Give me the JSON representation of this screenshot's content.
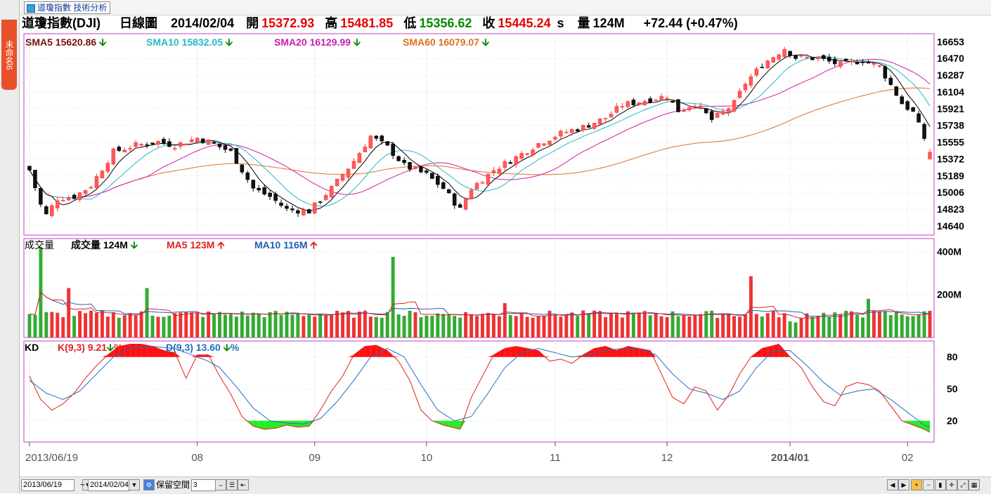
{
  "app": {
    "tab_label": "道瓊指數 技術分析",
    "side_tab_label": "未命名6"
  },
  "quote": {
    "name": "道瓊指數(DJI)",
    "period": "日線圖",
    "date": "2014/02/04",
    "open_label": "開",
    "open": "15372.93",
    "high_label": "高",
    "high": "15481.85",
    "low_label": "低",
    "low": "15356.62",
    "close_label": "收",
    "close": "15445.24",
    "close_suffix": "s",
    "vol_label": "量",
    "vol": "124M",
    "change": "+72.44 (+0.47%)"
  },
  "price_legend": {
    "sma5": "SMA5 15620.86",
    "sma10": "SMA10 15832.05",
    "sma20": "SMA20 16129.99",
    "sma60": "SMA60 16079.07"
  },
  "volume_legend": {
    "title": "成交量",
    "vol": "成交量 124M",
    "ma5": "MA5 123M",
    "ma10": "MA10 116M"
  },
  "kd_legend": {
    "title": "KD",
    "k": "K(9,3) 9.21",
    "k_suffix": "%",
    "d": "D(9,3) 13.60",
    "d_suffix": "%"
  },
  "toolbar": {
    "start_date": "2013/06/19",
    "tilde": "~",
    "end_date": "2014/02/04",
    "reserve_label": "保留空間",
    "reserve_value": "3"
  },
  "colors": {
    "up": "#ff3b3b",
    "down": "#000000",
    "sma5": "#000000",
    "sma10": "#26b8c8",
    "sma20": "#cc1fa8",
    "sma60": "#e07020",
    "vol_up": "#ee3333",
    "vol_down": "#33aa33",
    "ma5": "#e02020",
    "ma10": "#1f5fb5",
    "k": "#e02020",
    "d": "#1f6fc0"
  },
  "chart_data": [
    {
      "type": "candlestick",
      "title": "道瓊指數(DJI) 日線圖",
      "y_ticks": [
        16653,
        16470,
        16287,
        16104,
        15921,
        15738,
        15555,
        15372,
        15189,
        15006,
        14823,
        14640
      ],
      "ylim": [
        14540,
        16740
      ],
      "x_tick_labels": [
        "2013/06/19",
        "08",
        "09",
        "10",
        "11",
        "12",
        "2014/01",
        "02"
      ],
      "x_tick_index": [
        0,
        30,
        51,
        71,
        94,
        114,
        136,
        157
      ],
      "keypoints": [
        [
          0,
          15250
        ],
        [
          2,
          14870
        ],
        [
          3,
          14760
        ],
        [
          5,
          14940
        ],
        [
          8,
          14960
        ],
        [
          11,
          15080
        ],
        [
          15,
          15450
        ],
        [
          19,
          15520
        ],
        [
          23,
          15560
        ],
        [
          26,
          15520
        ],
        [
          30,
          15600
        ],
        [
          32,
          15560
        ],
        [
          36,
          15450
        ],
        [
          40,
          15050
        ],
        [
          43,
          14960
        ],
        [
          46,
          14820
        ],
        [
          50,
          14800
        ],
        [
          54,
          15050
        ],
        [
          58,
          15350
        ],
        [
          61,
          15620
        ],
        [
          64,
          15500
        ],
        [
          67,
          15300
        ],
        [
          71,
          15200
        ],
        [
          74,
          15050
        ],
        [
          77,
          14820
        ],
        [
          79,
          15050
        ],
        [
          83,
          15250
        ],
        [
          87,
          15390
        ],
        [
          91,
          15540
        ],
        [
          95,
          15650
        ],
        [
          99,
          15720
        ],
        [
          103,
          15820
        ],
        [
          106,
          15960
        ],
        [
          110,
          16010
        ],
        [
          114,
          16060
        ],
        [
          116,
          15900
        ],
        [
          119,
          15980
        ],
        [
          122,
          15800
        ],
        [
          124,
          15880
        ],
        [
          126,
          15980
        ],
        [
          128,
          16200
        ],
        [
          131,
          16400
        ],
        [
          135,
          16580
        ],
        [
          137,
          16480
        ],
        [
          141,
          16470
        ],
        [
          145,
          16400
        ],
        [
          149,
          16450
        ],
        [
          152,
          16380
        ],
        [
          154,
          16180
        ],
        [
          156,
          15980
        ],
        [
          158,
          15880
        ],
        [
          160,
          15600
        ],
        [
          161,
          15440
        ]
      ],
      "last_candle": {
        "open": 15372.93,
        "high": 15481.85,
        "low": 15356.62,
        "close": 15445.24
      },
      "series": [
        {
          "name": "SMA5",
          "last": 15620.86
        },
        {
          "name": "SMA10",
          "last": 15832.05
        },
        {
          "name": "SMA20",
          "last": 16129.99
        },
        {
          "name": "SMA60",
          "last": 16079.07
        }
      ]
    },
    {
      "type": "bar",
      "title": "成交量",
      "y_ticks_labels": [
        "400M",
        "200M"
      ],
      "y_ticks": [
        400,
        200
      ],
      "ylim": [
        0,
        460
      ],
      "base_volume": 105,
      "spikes": [
        {
          "i": 2,
          "v": 420
        },
        {
          "i": 7,
          "v": 230
        },
        {
          "i": 21,
          "v": 230
        },
        {
          "i": 65,
          "v": 375
        },
        {
          "i": 85,
          "v": 160
        },
        {
          "i": 129,
          "v": 285
        },
        {
          "i": 150,
          "v": 180
        },
        {
          "i": 136,
          "v": 75
        },
        {
          "i": 137,
          "v": 70
        }
      ],
      "series": [
        {
          "name": "成交量",
          "last": 124
        },
        {
          "name": "MA5",
          "last": 123
        },
        {
          "name": "MA10",
          "last": 116
        }
      ]
    },
    {
      "type": "line",
      "title": "KD",
      "y_ticks": [
        80,
        50,
        20
      ],
      "ylim": [
        0,
        95
      ],
      "k_keypoints": [
        [
          0,
          62
        ],
        [
          2,
          40
        ],
        [
          4,
          30
        ],
        [
          6,
          36
        ],
        [
          8,
          46
        ],
        [
          10,
          60
        ],
        [
          12,
          72
        ],
        [
          14,
          82
        ],
        [
          16,
          90
        ],
        [
          18,
          92
        ],
        [
          20,
          92
        ],
        [
          22,
          90
        ],
        [
          24,
          86
        ],
        [
          26,
          84
        ],
        [
          28,
          60
        ],
        [
          30,
          82
        ],
        [
          32,
          82
        ],
        [
          34,
          62
        ],
        [
          36,
          45
        ],
        [
          38,
          24
        ],
        [
          40,
          15
        ],
        [
          42,
          12
        ],
        [
          44,
          13
        ],
        [
          46,
          16
        ],
        [
          48,
          14
        ],
        [
          50,
          15
        ],
        [
          52,
          30
        ],
        [
          54,
          48
        ],
        [
          56,
          62
        ],
        [
          58,
          82
        ],
        [
          60,
          90
        ],
        [
          62,
          91
        ],
        [
          64,
          86
        ],
        [
          66,
          76
        ],
        [
          68,
          58
        ],
        [
          70,
          30
        ],
        [
          72,
          20
        ],
        [
          74,
          16
        ],
        [
          77,
          12
        ],
        [
          79,
          42
        ],
        [
          81,
          62
        ],
        [
          83,
          82
        ],
        [
          85,
          88
        ],
        [
          87,
          90
        ],
        [
          89,
          88
        ],
        [
          91,
          86
        ],
        [
          93,
          76
        ],
        [
          95,
          78
        ],
        [
          97,
          74
        ],
        [
          99,
          82
        ],
        [
          101,
          88
        ],
        [
          103,
          90
        ],
        [
          105,
          86
        ],
        [
          107,
          90
        ],
        [
          109,
          88
        ],
        [
          111,
          86
        ],
        [
          113,
          64
        ],
        [
          115,
          42
        ],
        [
          117,
          36
        ],
        [
          119,
          52
        ],
        [
          121,
          48
        ],
        [
          123,
          30
        ],
        [
          125,
          44
        ],
        [
          127,
          64
        ],
        [
          129,
          80
        ],
        [
          131,
          88
        ],
        [
          134,
          92
        ],
        [
          136,
          80
        ],
        [
          138,
          70
        ],
        [
          140,
          52
        ],
        [
          142,
          38
        ],
        [
          144,
          34
        ],
        [
          146,
          52
        ],
        [
          148,
          56
        ],
        [
          150,
          54
        ],
        [
          152,
          48
        ],
        [
          154,
          34
        ],
        [
          156,
          20
        ],
        [
          158,
          16
        ],
        [
          160,
          12
        ],
        [
          161,
          9.21
        ]
      ],
      "d_keypoints": [
        [
          0,
          58
        ],
        [
          3,
          46
        ],
        [
          6,
          40
        ],
        [
          9,
          48
        ],
        [
          12,
          64
        ],
        [
          15,
          80
        ],
        [
          18,
          88
        ],
        [
          22,
          90
        ],
        [
          26,
          88
        ],
        [
          30,
          80
        ],
        [
          32,
          76
        ],
        [
          34,
          70
        ],
        [
          37,
          52
        ],
        [
          40,
          32
        ],
        [
          43,
          20
        ],
        [
          46,
          18
        ],
        [
          49,
          17
        ],
        [
          52,
          22
        ],
        [
          55,
          38
        ],
        [
          58,
          58
        ],
        [
          61,
          80
        ],
        [
          64,
          88
        ],
        [
          67,
          80
        ],
        [
          70,
          54
        ],
        [
          73,
          30
        ],
        [
          76,
          20
        ],
        [
          79,
          24
        ],
        [
          82,
          46
        ],
        [
          85,
          70
        ],
        [
          88,
          84
        ],
        [
          91,
          88
        ],
        [
          94,
          84
        ],
        [
          97,
          80
        ],
        [
          100,
          82
        ],
        [
          103,
          86
        ],
        [
          106,
          88
        ],
        [
          109,
          88
        ],
        [
          112,
          82
        ],
        [
          115,
          64
        ],
        [
          118,
          50
        ],
        [
          121,
          46
        ],
        [
          124,
          40
        ],
        [
          127,
          48
        ],
        [
          130,
          70
        ],
        [
          133,
          86
        ],
        [
          136,
          86
        ],
        [
          139,
          72
        ],
        [
          142,
          56
        ],
        [
          145,
          44
        ],
        [
          148,
          48
        ],
        [
          151,
          50
        ],
        [
          154,
          40
        ],
        [
          157,
          28
        ],
        [
          160,
          16
        ],
        [
          161,
          13.6
        ]
      ],
      "series": [
        {
          "name": "K(9,3)",
          "last": 9.21
        },
        {
          "name": "D(9,3)",
          "last": 13.6
        }
      ]
    }
  ]
}
